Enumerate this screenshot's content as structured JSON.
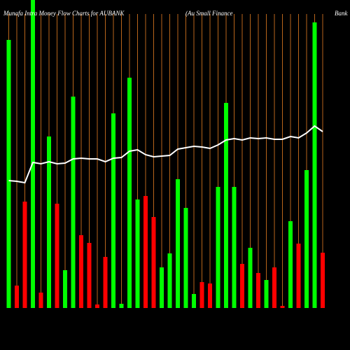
{
  "chart_data": {
    "type": "bar",
    "title": "Munafa Intra Money Flow Charts for AUBANK",
    "subtitle": "(Au  Small Finance",
    "subtitle2": "Bank",
    "values": [
      383,
      32,
      152,
      440,
      22,
      245,
      149,
      54,
      302,
      104,
      93,
      5,
      73,
      278,
      6,
      329,
      155,
      160,
      130,
      58,
      78,
      184,
      143,
      20,
      37,
      35,
      173,
      293,
      173,
      63,
      86,
      50,
      40,
      58,
      3,
      124,
      92,
      197,
      408,
      79
    ],
    "bar_colors": [
      "#00ff00",
      "#ff0000",
      "#ff0000",
      "#00ff00",
      "#ff0000",
      "#00ff00",
      "#ff0000",
      "#00ff00",
      "#00ff00",
      "#ff0000",
      "#ff0000",
      "#ff0000",
      "#ff0000",
      "#00ff00",
      "#00ff00",
      "#00ff00",
      "#00ff00",
      "#ff0000",
      "#ff0000",
      "#00ff00",
      "#00ff00",
      "#00ff00",
      "#00ff00",
      "#00ff00",
      "#ff0000",
      "#ff0000",
      "#00ff00",
      "#00ff00",
      "#00ff00",
      "#ff0000",
      "#00ff00",
      "#ff0000",
      "#00ff00",
      "#ff0000",
      "#ff0000",
      "#00ff00",
      "#ff0000",
      "#00ff00",
      "#00ff00",
      "#ff0000"
    ],
    "line": {
      "color": "#ffffff",
      "values": [
        182,
        181,
        179,
        208,
        206,
        209,
        206,
        207,
        213,
        214,
        213,
        213,
        209,
        214,
        215,
        224,
        226,
        219,
        216,
        217,
        218,
        227,
        229,
        231,
        230,
        228,
        233,
        240,
        242,
        240,
        243,
        242,
        243,
        241,
        241,
        245,
        243,
        250,
        260,
        252
      ]
    },
    "ylim": [
      0,
      440
    ],
    "gridline_color": "#b8651b"
  }
}
